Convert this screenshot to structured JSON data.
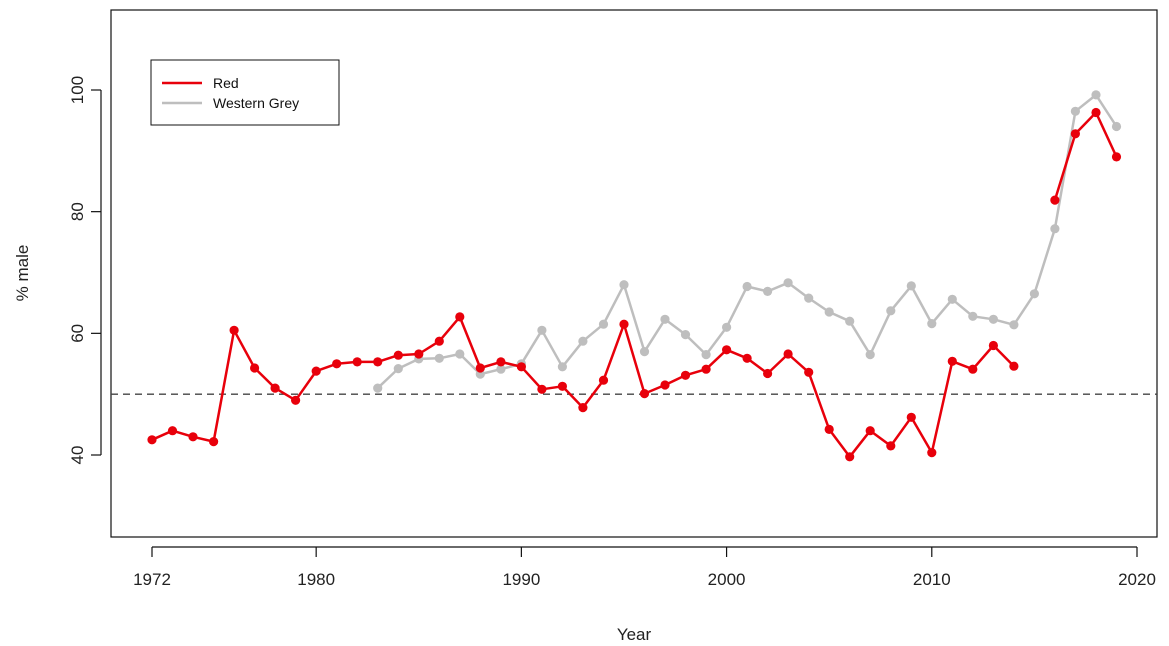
{
  "chart_data": {
    "type": "line",
    "xlabel": "Year",
    "ylabel": "% male",
    "xlim": [
      1972,
      2020
    ],
    "ylim": [
      25,
      113
    ],
    "x_ticks": [
      1972,
      1980,
      1990,
      2000,
      2010,
      2020
    ],
    "y_ticks": [
      40,
      60,
      80,
      100
    ],
    "reference_line": {
      "y": 50,
      "style": "dashed",
      "color": "#444444"
    },
    "legend": {
      "placement": "top-left"
    },
    "grid": false,
    "series": [
      {
        "name": "Red",
        "color": "#e8000b",
        "x": [
          1972,
          1973,
          1974,
          1975,
          1976,
          1977,
          1978,
          1979,
          1980,
          1981,
          1982,
          1983,
          1984,
          1985,
          1986,
          1987,
          1988,
          1989,
          1990,
          1991,
          1992,
          1993,
          1994,
          1995,
          1996,
          1997,
          1998,
          1999,
          2000,
          2001,
          2002,
          2003,
          2004,
          2005,
          2006,
          2007,
          2008,
          2009,
          2010,
          2011,
          2012,
          2013,
          2014,
          2015,
          2016,
          2017,
          2018,
          2019
        ],
        "values": [
          42.5,
          44,
          43,
          42.2,
          60.5,
          54.3,
          51,
          49,
          53.8,
          55,
          55.3,
          55.3,
          56.4,
          56.6,
          58.7,
          62.7,
          54.3,
          55.3,
          54.5,
          50.8,
          51.3,
          47.8,
          52.3,
          61.5,
          50.1,
          51.5,
          53.1,
          54.1,
          57.3,
          55.9,
          53.4,
          56.6,
          53.6,
          44.2,
          39.7,
          44,
          41.5,
          46.2,
          40.4,
          55.4,
          54.1,
          58,
          54.6,
          null,
          81.9,
          92.8,
          96.3,
          89
        ]
      },
      {
        "name": "Western Grey",
        "color": "#bebebe",
        "x": [
          1983,
          1984,
          1985,
          1986,
          1987,
          1988,
          1989,
          1990,
          1991,
          1992,
          1993,
          1994,
          1995,
          1996,
          1997,
          1998,
          1999,
          2000,
          2001,
          2002,
          2003,
          2004,
          2005,
          2006,
          2007,
          2008,
          2009,
          2010,
          2011,
          2012,
          2013,
          2014,
          2015,
          2016,
          2017,
          2018,
          2019
        ],
        "values": [
          51,
          54.2,
          55.8,
          55.9,
          56.6,
          53.3,
          54.1,
          55,
          60.5,
          54.5,
          58.7,
          61.5,
          68,
          57,
          62.3,
          59.8,
          56.5,
          61,
          67.7,
          66.9,
          68.3,
          65.8,
          63.5,
          62,
          56.5,
          63.7,
          67.8,
          61.6,
          65.6,
          62.8,
          62.3,
          61.4,
          66.5,
          77.2,
          96.5,
          99.2,
          94
        ]
      }
    ]
  }
}
